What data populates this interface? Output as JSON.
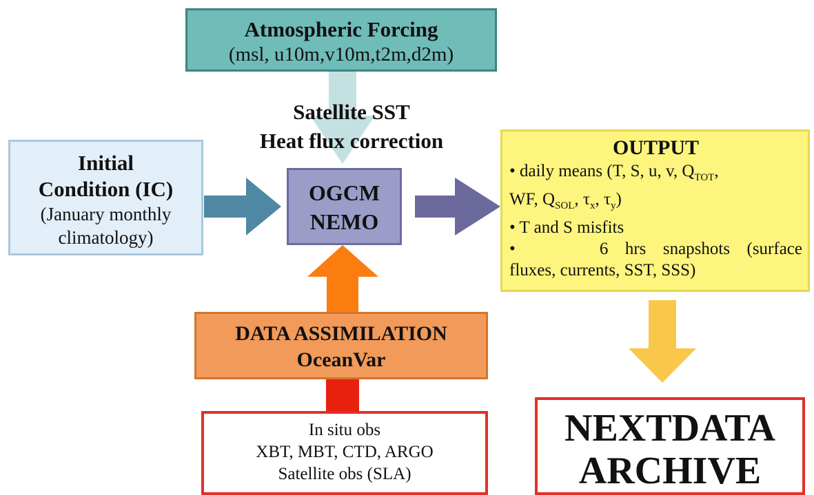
{
  "atmospheric": {
    "title": "Atmospheric Forcing",
    "vars": "(msl, u10m,v10m,t2m,d2m)"
  },
  "satellite": {
    "line1": "Satellite SST",
    "line2": "Heat flux correction"
  },
  "initial_condition": {
    "line1": "Initial",
    "line2": "Condition (IC)",
    "line3": "(January monthly",
    "line4": "climatology)"
  },
  "ogcm": {
    "line1": "OGCM",
    "line2": "NEMO"
  },
  "output": {
    "title": "OUTPUT",
    "daily_a": "• daily means (T, S, u, v, Q",
    "daily_sub_tot": "TOT",
    "daily_b": ",",
    "daily_c": "WF, Q",
    "daily_sub_sol": "SOL",
    "daily_d": ", τ",
    "daily_sub_x": "x",
    "daily_e": ", τ",
    "daily_sub_y": "y",
    "daily_f": ")",
    "misfits": "• T and S misfits",
    "snap1": "•     6 hrs snapshots (surface",
    "snap2": "fluxes, currents, SST, SSS)"
  },
  "data_assimilation": {
    "line1": "DATA ASSIMILATION",
    "line2": "OceanVar"
  },
  "observations": {
    "line1": "In situ obs",
    "line2": "XBT, MBT, CTD, ARGO",
    "line3": "Satellite obs (SLA)"
  },
  "archive": {
    "line1": "NEXTDATA",
    "line2": "ARCHIVE"
  },
  "colors": {
    "atm_arrow": "#c4e1e2",
    "ic_arrow": "#4f88a2",
    "out_arrow": "#6c6a9c",
    "da_arrow": "#fb7d0f",
    "obs_arrow": "#e8210f",
    "archive_arrow": "#f9c84a"
  }
}
